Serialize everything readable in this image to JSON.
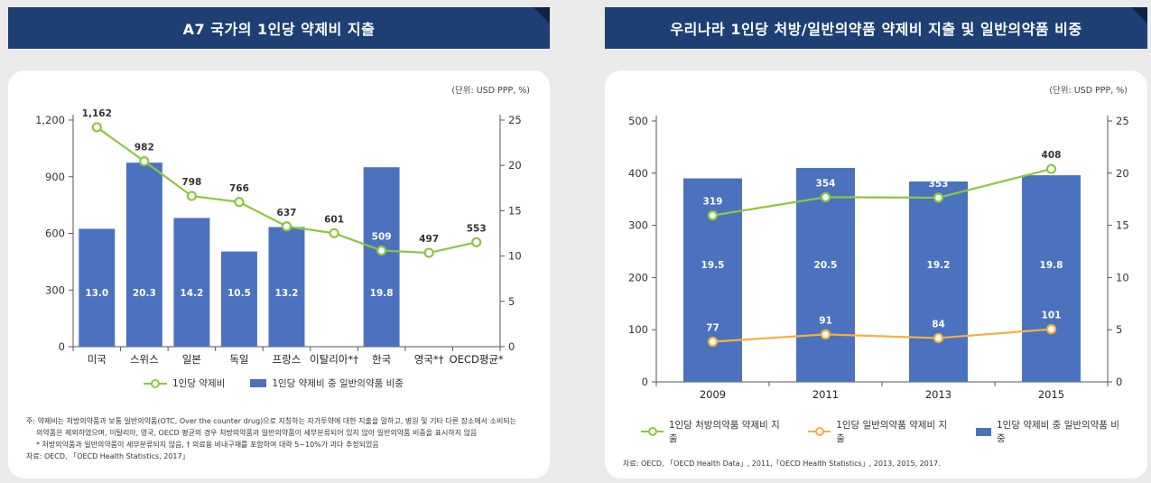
{
  "colors": {
    "header_bg": "#1d3f73",
    "bar": "#4b72be",
    "line_green": "#8dc63f",
    "line_orange": "#f5b041"
  },
  "left": {
    "title": "A7 국가의 1인당 약제비 지출",
    "unit": "(단위: USD PPP, %)",
    "legend_line": "1인당 약제비",
    "legend_bar": "1인당 약제비 중 일반의약품 비중",
    "note_1": "주: 약제비는 처방의약품과 보통 일반의약품(OTC, Over the counter drug)으로 지칭하는 자가투약에 대한 지출을 말하고, 병원 및 기타 다른 장소에서 소비되는",
    "note_2": "의약품은 제외하였으며, 이탈리아, 영국, OECD 평균의 경우 처방의약품과 일반의약품이 세부분류되어 있지 않아 일반의약품 비중을 표시하지 않음",
    "note_3": "* 처방의약품과 일반의약품이 세부분류되지 않음, † 의료용 비내구재를 포함하여 대략 5~10%가 과다 추정되었음",
    "source": "자료: OECD, 「OECD Health Statistics, 2017」"
  },
  "right": {
    "title": "우리나라 1인당 처방/일반의약품 약제비 지출 및 일반의약품 비중",
    "unit": "(단위: USD PPP, %)",
    "legend_line1": "1인당 처방의약품 약제비 지출",
    "legend_line2": "1인당 일반의약품 약제비 지출",
    "legend_bar": "1인당 약제비 중 일반의약품 비중",
    "source": "자료: OECD, 「OECD Health Data」, 2011,「OECD Health Statistics」, 2013, 2015, 2017."
  },
  "chart_data": [
    {
      "type": "bar",
      "title": "A7 국가의 1인당 약제비 지출",
      "categories": [
        "미국",
        "스위스",
        "일본",
        "독일",
        "프랑스",
        "이탈리아*†",
        "한국",
        "영국*†",
        "OECD평균*"
      ],
      "series": [
        {
          "name": "1인당 약제비",
          "type": "line",
          "axis": "left",
          "values": [
            1162,
            982,
            798,
            766,
            637,
            601,
            509,
            497,
            553
          ],
          "labels": [
            "1,162",
            "982",
            "798",
            "766",
            "637",
            "601",
            "509",
            "497",
            "553"
          ]
        },
        {
          "name": "1인당 약제비 중 일반의약품 비중",
          "type": "bar",
          "axis": "right",
          "values": [
            13.0,
            20.3,
            14.2,
            10.5,
            13.2,
            null,
            19.8,
            null,
            null
          ],
          "labels": [
            "13.0",
            "20.3",
            "14.2",
            "10.5",
            "13.2",
            "",
            "19.8",
            "",
            ""
          ]
        }
      ],
      "y_left": {
        "ylim": [
          0,
          1200
        ],
        "ticks": [
          "0",
          "300",
          "600",
          "900",
          "1,200"
        ],
        "tick_values": [
          0,
          300,
          600,
          900,
          1200
        ]
      },
      "y_right": {
        "ylim": [
          0,
          25
        ],
        "ticks": [
          "0",
          "5",
          "10",
          "15",
          "20",
          "25"
        ],
        "tick_values": [
          0,
          5,
          10,
          15,
          20,
          25
        ]
      },
      "grid": false,
      "legend": "bottom"
    },
    {
      "type": "bar",
      "title": "우리나라 1인당 처방/일반의약품 약제비 지출 및 일반의약품 비중",
      "categories": [
        "2009",
        "2011",
        "2013",
        "2015"
      ],
      "series": [
        {
          "name": "1인당 처방의약품 약제비 지출",
          "type": "line",
          "axis": "left",
          "values": [
            319,
            354,
            353,
            408
          ],
          "labels": [
            "319",
            "354",
            "353",
            "408"
          ]
        },
        {
          "name": "1인당 일반의약품 약제비 지출",
          "type": "line",
          "axis": "left",
          "values": [
            77,
            91,
            84,
            101
          ],
          "labels": [
            "77",
            "91",
            "84",
            "101"
          ]
        },
        {
          "name": "1인당 약제비 중 일반의약품 비중",
          "type": "bar",
          "axis": "right",
          "values": [
            19.5,
            20.5,
            19.2,
            19.8
          ],
          "labels": [
            "19.5",
            "20.5",
            "19.2",
            "19.8"
          ]
        }
      ],
      "y_left": {
        "ylim": [
          0,
          500
        ],
        "ticks": [
          "0",
          "100",
          "200",
          "300",
          "400",
          "500"
        ],
        "tick_values": [
          0,
          100,
          200,
          300,
          400,
          500
        ]
      },
      "y_right": {
        "ylim": [
          0,
          25
        ],
        "ticks": [
          "0",
          "5",
          "10",
          "15",
          "20",
          "25"
        ],
        "tick_values": [
          0,
          5,
          10,
          15,
          20,
          25
        ]
      },
      "grid": false,
      "legend": "bottom"
    }
  ]
}
